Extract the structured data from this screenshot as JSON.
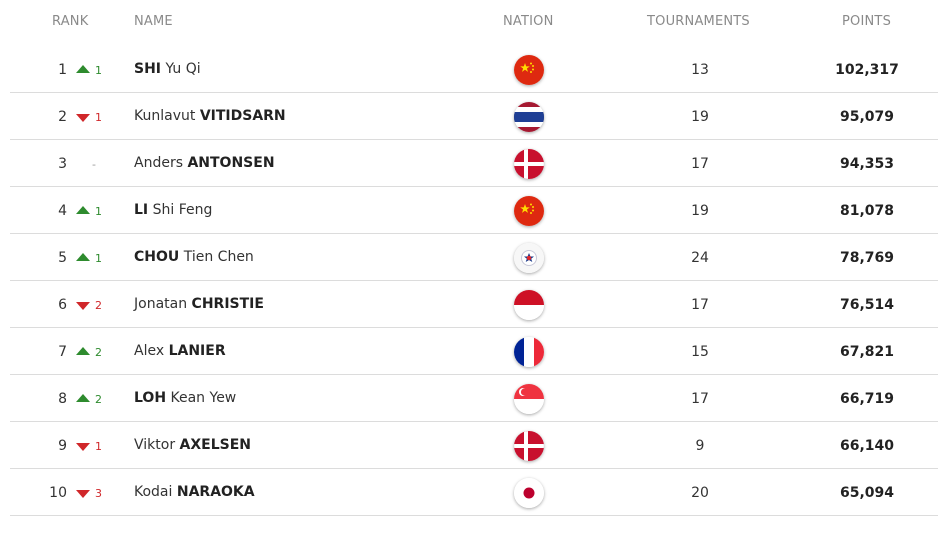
{
  "header": {
    "rank": "RANK",
    "name": "NAME",
    "nation": "NATION",
    "tournaments": "TOURNAMENTS",
    "points": "POINTS"
  },
  "players": [
    {
      "rank": "1",
      "move_dir": "up",
      "move": "1",
      "first": "",
      "surname": "SHI",
      "given": "Yu Qi",
      "surname_first": true,
      "nation": "china-flag",
      "tournaments": "13",
      "points": "102,317"
    },
    {
      "rank": "2",
      "move_dir": "down",
      "move": "1",
      "first": "Kunlavut",
      "surname": "VITIDSARN",
      "given": "",
      "surname_first": false,
      "nation": "thailand-flag",
      "tournaments": "19",
      "points": "95,079"
    },
    {
      "rank": "3",
      "move_dir": "none",
      "move": "-",
      "first": "Anders",
      "surname": "ANTONSEN",
      "given": "",
      "surname_first": false,
      "nation": "denmark-flag",
      "tournaments": "17",
      "points": "94,353"
    },
    {
      "rank": "4",
      "move_dir": "up",
      "move": "1",
      "first": "",
      "surname": "LI",
      "given": "Shi Feng",
      "surname_first": true,
      "nation": "china-flag",
      "tournaments": "19",
      "points": "81,078"
    },
    {
      "rank": "5",
      "move_dir": "up",
      "move": "1",
      "first": "",
      "surname": "CHOU",
      "given": "Tien Chen",
      "surname_first": true,
      "nation": "chinese-taipei-flag",
      "tournaments": "24",
      "points": "78,769"
    },
    {
      "rank": "6",
      "move_dir": "down",
      "move": "2",
      "first": "Jonatan",
      "surname": "CHRISTIE",
      "given": "",
      "surname_first": false,
      "nation": "indonesia-flag",
      "tournaments": "17",
      "points": "76,514"
    },
    {
      "rank": "7",
      "move_dir": "up",
      "move": "2",
      "first": "Alex",
      "surname": "LANIER",
      "given": "",
      "surname_first": false,
      "nation": "france-flag",
      "tournaments": "15",
      "points": "67,821"
    },
    {
      "rank": "8",
      "move_dir": "up",
      "move": "2",
      "first": "",
      "surname": "LOH",
      "given": "Kean Yew",
      "surname_first": true,
      "nation": "singapore-flag",
      "tournaments": "17",
      "points": "66,719"
    },
    {
      "rank": "9",
      "move_dir": "down",
      "move": "1",
      "first": "Viktor",
      "surname": "AXELSEN",
      "given": "",
      "surname_first": false,
      "nation": "denmark-flag",
      "tournaments": "9",
      "points": "66,140"
    },
    {
      "rank": "10",
      "move_dir": "down",
      "move": "3",
      "first": "Kodai",
      "surname": "NARAOKA",
      "given": "",
      "surname_first": false,
      "nation": "japan-flag",
      "tournaments": "20",
      "points": "65,094"
    }
  ],
  "colors": {
    "up": "#2e8b2e",
    "down": "#d0272a",
    "divider": "#dcdcdc",
    "header_text": "#8a8a8a"
  }
}
